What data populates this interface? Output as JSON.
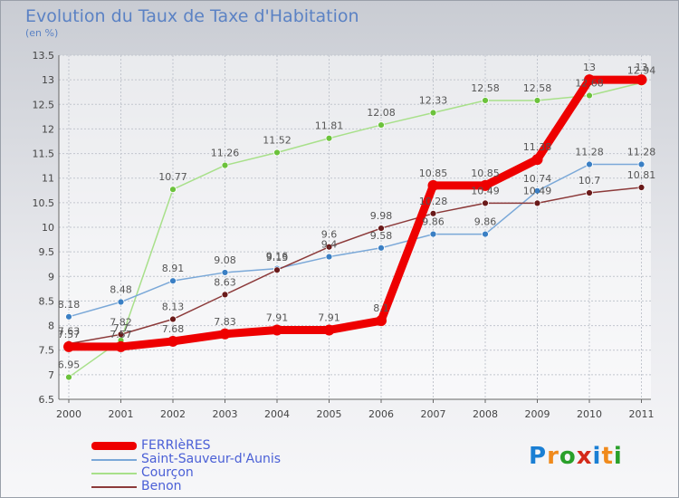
{
  "title": "Evolution du Taux de Taxe d'Habitation",
  "subtitle": "(en %)",
  "logo": {
    "text": "Proxiti",
    "colors": [
      "#1a7fd4",
      "#f08a1c",
      "#2aa02a",
      "#d42a1a",
      "#1a7fd4",
      "#f08a1c",
      "#2aa02a"
    ]
  },
  "chart_data": {
    "type": "line",
    "title": "Evolution du Taux de Taxe d'Habitation",
    "subtitle": "(en %)",
    "x": [
      "2000",
      "2001",
      "2002",
      "2003",
      "2004",
      "2005",
      "2006",
      "2007",
      "2008",
      "2009",
      "2010",
      "2011"
    ],
    "ylim": [
      6.5,
      13.5
    ],
    "yticks": [
      "6.5",
      "7",
      "7.5",
      "8",
      "8.5",
      "9",
      "9.5",
      "10",
      "10.5",
      "11",
      "11.5",
      "12",
      "12.5",
      "13",
      "13.5"
    ],
    "grid": true,
    "legend_position": "bottom-left",
    "series": [
      {
        "name": "FERRIèRES",
        "color": "#ee0000",
        "marker": "#ee0000",
        "values": [
          7.57,
          7.57,
          7.68,
          7.83,
          7.91,
          7.91,
          8.1,
          10.85,
          10.85,
          11.38,
          13,
          13
        ],
        "labels": [
          "7.57",
          "7.57",
          "7.68",
          "7.83",
          "7.91",
          "7.91",
          "8.1",
          "10.85",
          "10.85",
          "11.38",
          "13",
          "13"
        ]
      },
      {
        "name": "Saint-Sauveur-d'Aunis",
        "color": "#7aa8d8",
        "marker": "#3a7fc4",
        "values": [
          8.18,
          8.48,
          8.91,
          9.08,
          9.16,
          9.4,
          9.58,
          9.86,
          9.86,
          10.74,
          11.28,
          11.28
        ],
        "labels": [
          "8.18",
          "8.48",
          "8.91",
          "9.08",
          "9.16",
          "9.4",
          "9.58",
          "9.86",
          "9.86",
          "10.74",
          "11.28",
          "11.28"
        ]
      },
      {
        "name": "Courçon",
        "color": "#a8e08a",
        "marker": "#6cc23c",
        "values": [
          6.95,
          7.7,
          10.77,
          11.26,
          11.52,
          11.81,
          12.08,
          12.33,
          12.58,
          12.58,
          12.68,
          12.94
        ],
        "labels": [
          "6.95",
          "7.7",
          "10.77",
          "11.26",
          "11.52",
          "11.81",
          "12.08",
          "12.33",
          "12.58",
          "12.58",
          "12.68",
          "12.94"
        ]
      },
      {
        "name": "Benon",
        "color": "#8c3a3a",
        "marker": "#6a1a1a",
        "values": [
          7.63,
          7.82,
          8.13,
          8.63,
          9.13,
          9.6,
          9.98,
          10.28,
          10.49,
          10.49,
          10.7,
          10.81
        ],
        "labels": [
          "7.63",
          "7.82",
          "8.13",
          "8.63",
          "9.13",
          "9.6",
          "9.98",
          "10.28",
          "10.49",
          "10.49",
          "10.7",
          "10.81"
        ]
      }
    ]
  }
}
